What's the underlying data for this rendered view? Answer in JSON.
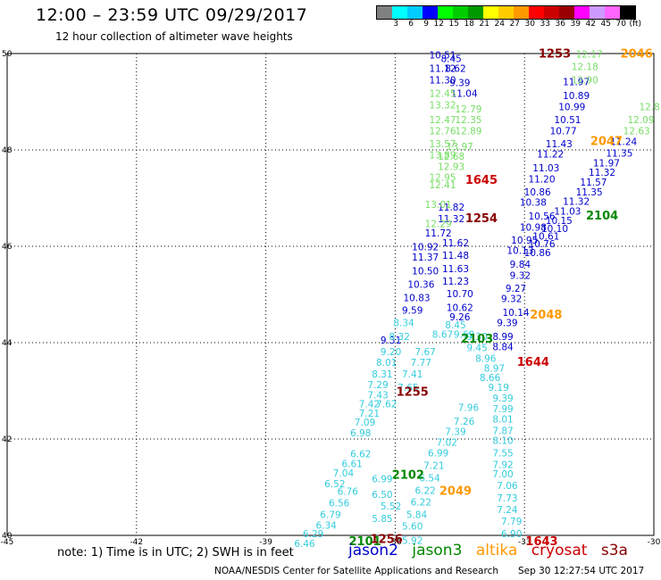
{
  "title": "12:00 – 23:59 UTC 09/29/2017",
  "subtitle": "12 hour collection of altimeter wave heights",
  "colorbar": {
    "colors": [
      "#808080",
      "#00ffff",
      "#00ccff",
      "#0000ff",
      "#00ff00",
      "#00cc00",
      "#009900",
      "#ffff00",
      "#ffcc00",
      "#ff9900",
      "#ff0000",
      "#cc0000",
      "#990000",
      "#ff00ff",
      "#cc99ff",
      "#ff66ff",
      "#000000"
    ],
    "labels": [
      "",
      "3",
      "6",
      "9",
      "12",
      "15",
      "18",
      "21",
      "24",
      "27",
      "30",
      "33",
      "36",
      "39",
      "42",
      "45",
      "70",
      "(ft)"
    ]
  },
  "axes": {
    "lon_ticks": [
      "-45",
      "-42",
      "-39",
      "-36",
      "-33",
      "-30"
    ],
    "lat_ticks": [
      "50",
      "48",
      "46",
      "44",
      "42",
      "40"
    ],
    "lon_range": [
      -45,
      -30
    ],
    "lat_range": [
      40,
      50
    ]
  },
  "satellites": {
    "jason2": {
      "label": "jason2",
      "color": "#0000cc"
    },
    "jason3": {
      "label": "jason3",
      "color": "#008800"
    },
    "altika": {
      "label": "altika",
      "color": "#ff9900"
    },
    "cryosat": {
      "label": "cryosat",
      "color": "#cc0000"
    },
    "s3a": {
      "label": "s3a",
      "color": "#880000"
    }
  },
  "chart_data": {
    "type": "map",
    "wave_tracks": [
      {
        "color": "#0000cc",
        "points": [
          [
            "10.51",
            -34.9,
            49.9
          ],
          [
            "11.12",
            -34.9,
            49.62
          ],
          [
            "11.30",
            -34.9,
            49.38
          ],
          [
            "11.04",
            -34.4,
            49.1
          ],
          [
            "9.39",
            -34.5,
            49.32
          ],
          [
            "8.62",
            -34.6,
            49.62
          ],
          [
            "8.45",
            -34.7,
            49.82
          ]
        ]
      },
      {
        "color": "#0000cc",
        "points": [
          [
            "11.97",
            -31.8,
            49.34
          ],
          [
            "10.89",
            -31.8,
            49.06
          ],
          [
            "10.99",
            -31.9,
            48.82
          ],
          [
            "10.51",
            -32.0,
            48.56
          ],
          [
            "10.77",
            -32.1,
            48.32
          ],
          [
            "11.43",
            -32.2,
            48.06
          ],
          [
            "11.22",
            -32.4,
            47.84
          ],
          [
            "11.03",
            -32.5,
            47.56
          ],
          [
            "11.20",
            -32.6,
            47.32
          ],
          [
            "10.86",
            -32.7,
            47.06
          ],
          [
            "10.38",
            -32.8,
            46.84
          ],
          [
            "10.56",
            -32.6,
            46.56
          ],
          [
            "10.98",
            -32.8,
            46.32
          ],
          [
            "10.95",
            -33.0,
            46.06
          ],
          [
            "10.13",
            -33.1,
            45.84
          ],
          [
            "9.84",
            -33.1,
            45.56
          ],
          [
            "9.32",
            -33.1,
            45.32
          ],
          [
            "9.27",
            -33.2,
            45.06
          ],
          [
            "9.32",
            -33.3,
            44.84
          ],
          [
            "10.14",
            -33.2,
            44.56
          ],
          [
            "9.39",
            -33.4,
            44.34
          ],
          [
            "8.99",
            -33.5,
            44.06
          ],
          [
            "8.84",
            -33.5,
            43.84
          ]
        ]
      },
      {
        "color": "#0000cc",
        "points": [
          [
            "11.24",
            -30.7,
            48.1
          ],
          [
            "11.35",
            -30.8,
            47.86
          ],
          [
            "11.97",
            -31.1,
            47.66
          ],
          [
            "11.32",
            -31.2,
            47.46
          ],
          [
            "11.57",
            -31.4,
            47.26
          ],
          [
            "11.35",
            -31.5,
            47.06
          ],
          [
            "11.32",
            -31.8,
            46.86
          ],
          [
            "11.03",
            -32.0,
            46.66
          ],
          [
            "10.15",
            -32.2,
            46.46
          ],
          [
            "10.10",
            -32.3,
            46.3
          ],
          [
            "10.61",
            -32.5,
            46.14
          ],
          [
            "10.76",
            -32.6,
            45.98
          ],
          [
            "10.86",
            -32.7,
            45.8
          ]
        ]
      },
      {
        "color": "#0000cc",
        "points": [
          [
            "11.82",
            -34.7,
            46.74
          ],
          [
            "11.32",
            -34.7,
            46.5
          ],
          [
            "11.72",
            -35.0,
            46.2
          ],
          [
            "11.62",
            -34.6,
            46.0
          ],
          [
            "10.92",
            -35.3,
            45.92
          ],
          [
            "11.48",
            -34.6,
            45.74
          ],
          [
            "11.37",
            -35.3,
            45.7
          ],
          [
            "11.63",
            -34.6,
            45.46
          ],
          [
            "10.50",
            -35.3,
            45.42
          ],
          [
            "11.23",
            -34.6,
            45.2
          ],
          [
            "10.36",
            -35.4,
            45.14
          ],
          [
            "10.70",
            -34.5,
            44.94
          ],
          [
            "10.83",
            -35.5,
            44.86
          ],
          [
            "10.62",
            -34.5,
            44.66
          ],
          [
            "9.59",
            -35.6,
            44.6
          ],
          [
            "9.26",
            -34.5,
            44.46
          ],
          [
            "9.31",
            -36.1,
            43.98
          ]
        ]
      },
      {
        "color": "#77dd66",
        "points": [
          [
            "12.17",
            -31.5,
            49.92
          ],
          [
            "12.18",
            -31.6,
            49.66
          ],
          [
            "12.90",
            -31.6,
            49.38
          ],
          [
            "12.45",
            -34.9,
            49.1
          ],
          [
            "13.32",
            -34.9,
            48.86
          ],
          [
            "12.79",
            -34.3,
            48.78
          ],
          [
            "12.47",
            -34.9,
            48.56
          ],
          [
            "12.35",
            -34.3,
            48.56
          ],
          [
            "12.76",
            -34.9,
            48.32
          ],
          [
            "12.89",
            -34.3,
            48.32
          ],
          [
            "13.57",
            -34.9,
            48.06
          ],
          [
            "13.97",
            -34.5,
            48.0
          ],
          [
            "13.89",
            -34.9,
            47.82
          ],
          [
            "12.68",
            -34.7,
            47.8
          ],
          [
            "12.93",
            -34.7,
            47.58
          ],
          [
            "12.95",
            -34.9,
            47.36
          ],
          [
            "12.41",
            -34.9,
            47.2
          ],
          [
            "12.29",
            -35.0,
            46.4
          ],
          [
            "13.01",
            -35.0,
            46.8
          ]
        ]
      },
      {
        "color": "#77dd66",
        "points": [
          [
            "12.09",
            -30.3,
            48.56
          ],
          [
            "12.63",
            -30.4,
            48.32
          ],
          [
            "12.8",
            -30.1,
            48.82
          ]
        ]
      },
      {
        "color": "#33ccdd",
        "points": [
          [
            "8.34",
            -35.8,
            44.34
          ],
          [
            "8.32",
            -35.9,
            44.06
          ],
          [
            "8.67",
            -34.9,
            44.1
          ],
          [
            "8.45",
            -34.6,
            44.3
          ],
          [
            "9.20",
            -36.1,
            43.74
          ],
          [
            "7.67",
            -35.3,
            43.74
          ],
          [
            "8.01",
            -36.2,
            43.52
          ],
          [
            "7.77",
            -35.4,
            43.52
          ],
          [
            "8.31",
            -36.3,
            43.28
          ],
          [
            "7.41",
            -35.6,
            43.28
          ],
          [
            "7.29",
            -36.4,
            43.06
          ],
          [
            "7.65",
            -35.7,
            43.0
          ],
          [
            "7.43",
            -36.4,
            42.84
          ],
          [
            "7.62",
            -36.2,
            42.66
          ],
          [
            "7.42",
            -36.6,
            42.66
          ],
          [
            "7.21",
            -36.6,
            42.46
          ],
          [
            "7.09",
            -36.7,
            42.28
          ],
          [
            "6.98",
            -36.8,
            42.06
          ],
          [
            "6.62",
            -36.8,
            41.62
          ],
          [
            "6.61",
            -37.0,
            41.42
          ],
          [
            "7.04",
            -37.2,
            41.22
          ],
          [
            "6.52",
            -37.4,
            41.0
          ],
          [
            "6.50",
            -36.3,
            40.78
          ],
          [
            "6.76",
            -37.1,
            40.84
          ],
          [
            "6.56",
            -37.3,
            40.6
          ],
          [
            "5.52",
            -36.1,
            40.54
          ],
          [
            "6.79",
            -37.5,
            40.36
          ],
          [
            "5.85",
            -36.3,
            40.28
          ],
          [
            "6.34",
            -37.6,
            40.14
          ],
          [
            "6.29",
            -37.9,
            39.96
          ],
          [
            "6.46",
            -38.1,
            39.76
          ],
          [
            "6.99",
            -36.3,
            41.1
          ]
        ]
      },
      {
        "color": "#33ccdd",
        "points": [
          [
            "9.69",
            -34.4,
            44.1
          ],
          [
            "9.30",
            -34.1,
            44.06
          ],
          [
            "9.45",
            -34.1,
            43.82
          ],
          [
            "8.96",
            -33.9,
            43.6
          ],
          [
            "8.97",
            -33.7,
            43.4
          ],
          [
            "8.66",
            -33.8,
            43.2
          ],
          [
            "9.19",
            -33.6,
            43.0
          ],
          [
            "9.39",
            -33.5,
            42.78
          ],
          [
            "7.96",
            -34.3,
            42.58
          ],
          [
            "7.99",
            -33.5,
            42.56
          ],
          [
            "7.26",
            -34.4,
            42.3
          ],
          [
            "8.01",
            -33.5,
            42.34
          ],
          [
            "7.39",
            -34.6,
            42.08
          ],
          [
            "7.87",
            -33.5,
            42.1
          ],
          [
            "7.02",
            -34.8,
            41.86
          ],
          [
            "8.10",
            -33.5,
            41.9
          ],
          [
            "6.99",
            -35.0,
            41.64
          ],
          [
            "7.55",
            -33.5,
            41.64
          ],
          [
            "7.21",
            -35.1,
            41.38
          ],
          [
            "7.92",
            -33.5,
            41.4
          ],
          [
            "6.54",
            -35.2,
            41.12
          ],
          [
            "7.00",
            -33.5,
            41.2
          ],
          [
            "6.22",
            -35.3,
            40.86
          ],
          [
            "7.06",
            -33.4,
            40.96
          ],
          [
            "6.22",
            -35.4,
            40.62
          ],
          [
            "7.73",
            -33.4,
            40.7
          ],
          [
            "5.84",
            -35.5,
            40.36
          ],
          [
            "7.24",
            -33.4,
            40.46
          ],
          [
            "5.60",
            -35.6,
            40.12
          ],
          [
            "7.79",
            -33.3,
            40.22
          ],
          [
            "5.92",
            -35.6,
            39.82
          ],
          [
            "6.90",
            -33.3,
            39.96
          ]
        ]
      },
      {
        "color": "#008800",
        "points": [
          [
            "2104",
            -31.2,
            46.56
          ],
          [
            "2102",
            -35.7,
            41.18
          ],
          [
            "2101",
            -36.7,
            39.8
          ],
          [
            "2103",
            -34.1,
            44.0
          ]
        ]
      },
      {
        "color": "#ff9900",
        "points": [
          [
            "2046",
            -30.4,
            49.92
          ],
          [
            "2047",
            -31.1,
            48.1
          ],
          [
            "2048",
            -32.5,
            44.5
          ],
          [
            "2049",
            -34.6,
            40.84
          ]
        ]
      },
      {
        "color": "#cc0000",
        "points": [
          [
            "1645",
            -34.0,
            47.3
          ],
          [
            "1644",
            -32.8,
            43.52
          ],
          [
            "1643",
            -32.6,
            39.8
          ]
        ]
      },
      {
        "color": "#880000",
        "points": [
          [
            "1253",
            -32.3,
            49.92
          ],
          [
            "1254",
            -34.0,
            46.5
          ],
          [
            "1255",
            -35.6,
            42.9
          ],
          [
            "1256",
            -36.2,
            39.84
          ]
        ]
      }
    ]
  },
  "footer": {
    "note": "note:  1) Time is in UTC;  2) SWH is in feet",
    "credit": "NOAA/NESDIS Center for Satellite Applications and Research",
    "stamp": "Sep 30 12:27:54 UTC 2017"
  }
}
